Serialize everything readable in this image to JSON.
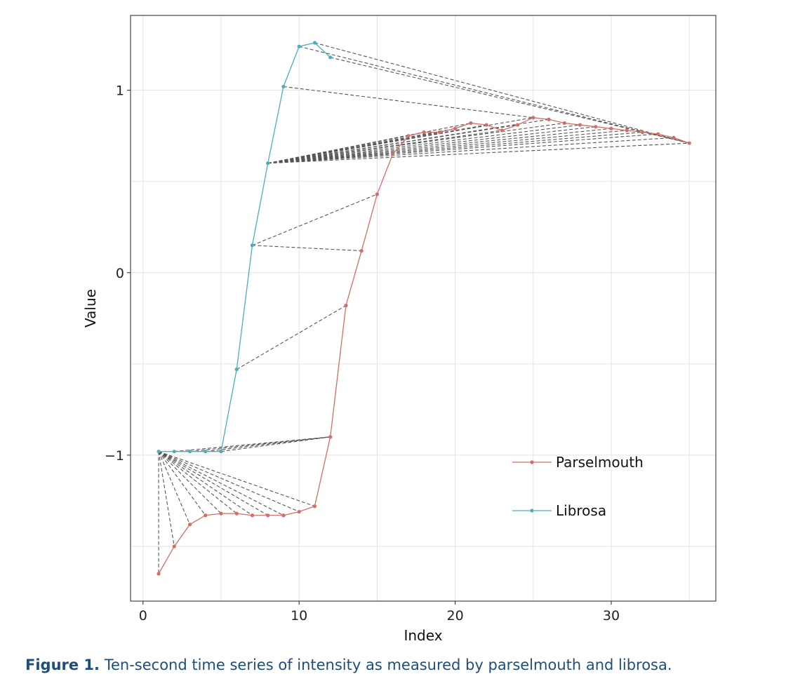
{
  "caption": {
    "label": "Figure 1.",
    "text": "Ten-second time series of intensity as measured by parselmouth and librosa."
  },
  "chart_data": {
    "type": "line",
    "xlabel": "Index",
    "ylabel": "Value",
    "xlim": [
      -0.8,
      36.7
    ],
    "ylim": [
      -1.8,
      1.41
    ],
    "x_ticks": [
      0,
      10,
      20,
      30
    ],
    "x_tick_labels": [
      "0",
      "10",
      "20",
      "30"
    ],
    "x_minor_grid": [
      5,
      15,
      25,
      35
    ],
    "y_ticks": [
      -1,
      0,
      1
    ],
    "y_tick_labels": [
      "−1",
      "0",
      "1"
    ],
    "y_minor_grid": [
      -1.5,
      -0.5,
      0.5
    ],
    "grid": true,
    "legend_position": "bottom-right inside",
    "colors": {
      "parselmouth": "#d16e66",
      "librosa": "#4fadb8",
      "connector": "#555555",
      "grid": "#e3e3e3",
      "frame": "#222222"
    },
    "series": [
      {
        "name": "Parselmouth",
        "x": [
          1,
          2,
          3,
          4,
          5,
          6,
          7,
          8,
          9,
          10,
          11,
          12,
          13,
          14,
          15,
          16,
          17,
          18,
          19,
          20,
          21,
          22,
          23,
          24,
          25,
          26,
          27,
          28,
          29,
          30,
          31,
          32,
          33,
          34,
          35
        ],
        "y": [
          -1.65,
          -1.5,
          -1.38,
          -1.33,
          -1.32,
          -1.32,
          -1.33,
          -1.33,
          -1.33,
          -1.31,
          -1.28,
          -0.9,
          -0.18,
          0.12,
          0.43,
          0.65,
          0.75,
          0.77,
          0.77,
          0.79,
          0.82,
          0.81,
          0.78,
          0.81,
          0.85,
          0.84,
          0.82,
          0.81,
          0.8,
          0.79,
          0.78,
          0.77,
          0.76,
          0.74,
          0.71
        ]
      },
      {
        "name": "Librosa",
        "x": [
          1,
          2,
          3,
          4,
          5,
          6,
          7,
          8,
          9,
          10,
          11,
          12
        ],
        "y": [
          -0.98,
          -0.98,
          -0.98,
          -0.98,
          -0.98,
          -0.53,
          0.15,
          0.6,
          1.02,
          1.24,
          1.26,
          1.18
        ]
      }
    ],
    "alignment_pairs": [
      [
        1,
        1
      ],
      [
        1,
        2
      ],
      [
        1,
        3
      ],
      [
        1,
        4
      ],
      [
        1,
        5
      ],
      [
        1,
        6
      ],
      [
        1,
        7
      ],
      [
        1,
        8
      ],
      [
        1,
        9
      ],
      [
        1,
        10
      ],
      [
        1,
        11
      ],
      [
        2,
        12
      ],
      [
        3,
        12
      ],
      [
        4,
        12
      ],
      [
        5,
        12
      ],
      [
        6,
        13
      ],
      [
        7,
        14
      ],
      [
        7,
        15
      ],
      [
        8,
        16
      ],
      [
        8,
        17
      ],
      [
        8,
        18
      ],
      [
        8,
        19
      ],
      [
        8,
        20
      ],
      [
        8,
        21
      ],
      [
        8,
        22
      ],
      [
        8,
        23
      ],
      [
        8,
        24
      ],
      [
        8,
        25
      ],
      [
        8,
        26
      ],
      [
        8,
        27
      ],
      [
        8,
        28
      ],
      [
        8,
        29
      ],
      [
        8,
        30
      ],
      [
        8,
        31
      ],
      [
        8,
        32
      ],
      [
        8,
        33
      ],
      [
        8,
        34
      ],
      [
        8,
        35
      ],
      [
        9,
        25
      ],
      [
        10,
        35
      ],
      [
        11,
        35
      ],
      [
        12,
        35
      ]
    ]
  }
}
